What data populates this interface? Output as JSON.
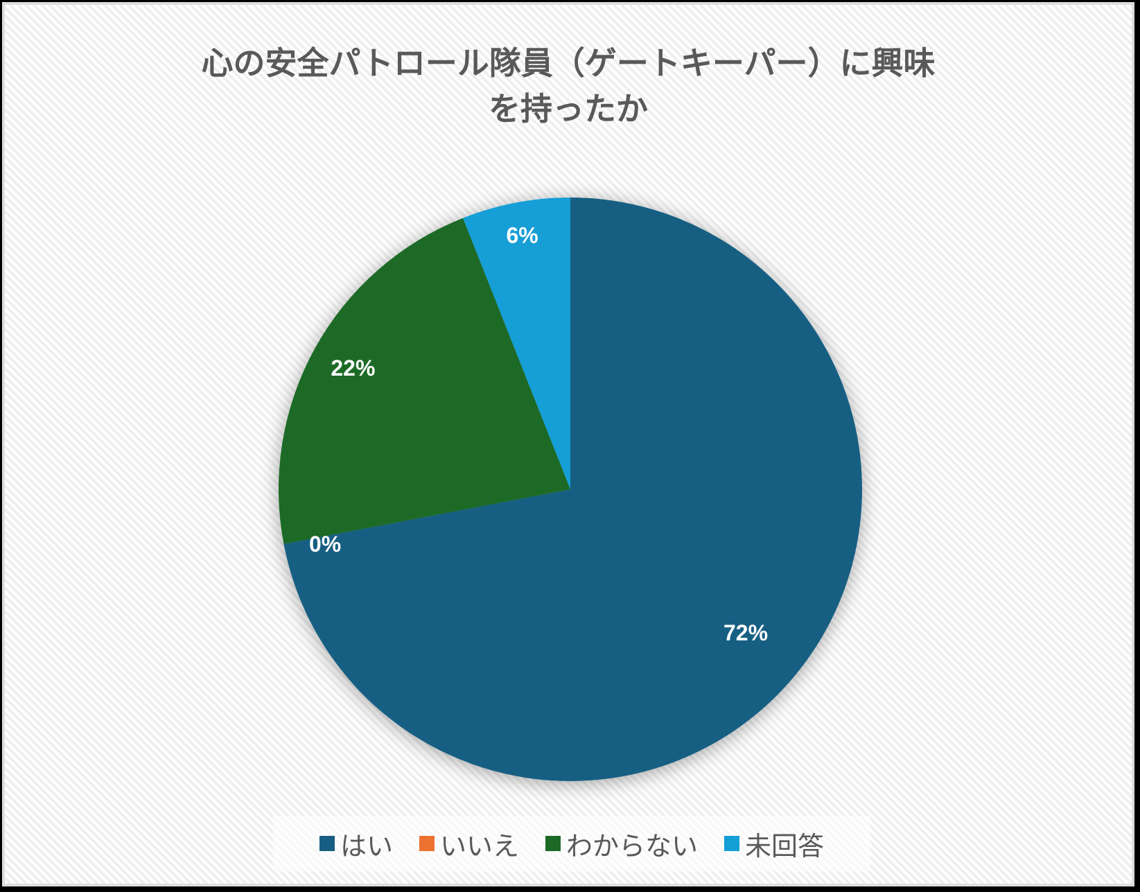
{
  "chart_data": {
    "type": "pie",
    "title": "心の安全パトロール隊員（ゲートキーパー）に興味を持ったか",
    "title_lines": [
      "心の安全パトロール隊員（ゲートキーパー）に興味",
      "を持ったか"
    ],
    "categories": [
      "はい",
      "いいえ",
      "わからない",
      "未回答"
    ],
    "values": [
      72,
      0,
      22,
      6
    ],
    "value_labels": [
      "72%",
      "0%",
      "22%",
      "6%"
    ],
    "colors": [
      "#175E82",
      "#ED7130",
      "#1C6A26",
      "#139ED6"
    ],
    "start_angle_deg": 0,
    "direction": "clockwise",
    "legend_position": "bottom",
    "unit": "%"
  },
  "legend": {
    "items": [
      {
        "label": "はい",
        "color": "#175E82"
      },
      {
        "label": "いいえ",
        "color": "#ED7130"
      },
      {
        "label": "わからない",
        "color": "#1C6A26"
      },
      {
        "label": "未回答",
        "color": "#139ED6"
      }
    ]
  }
}
